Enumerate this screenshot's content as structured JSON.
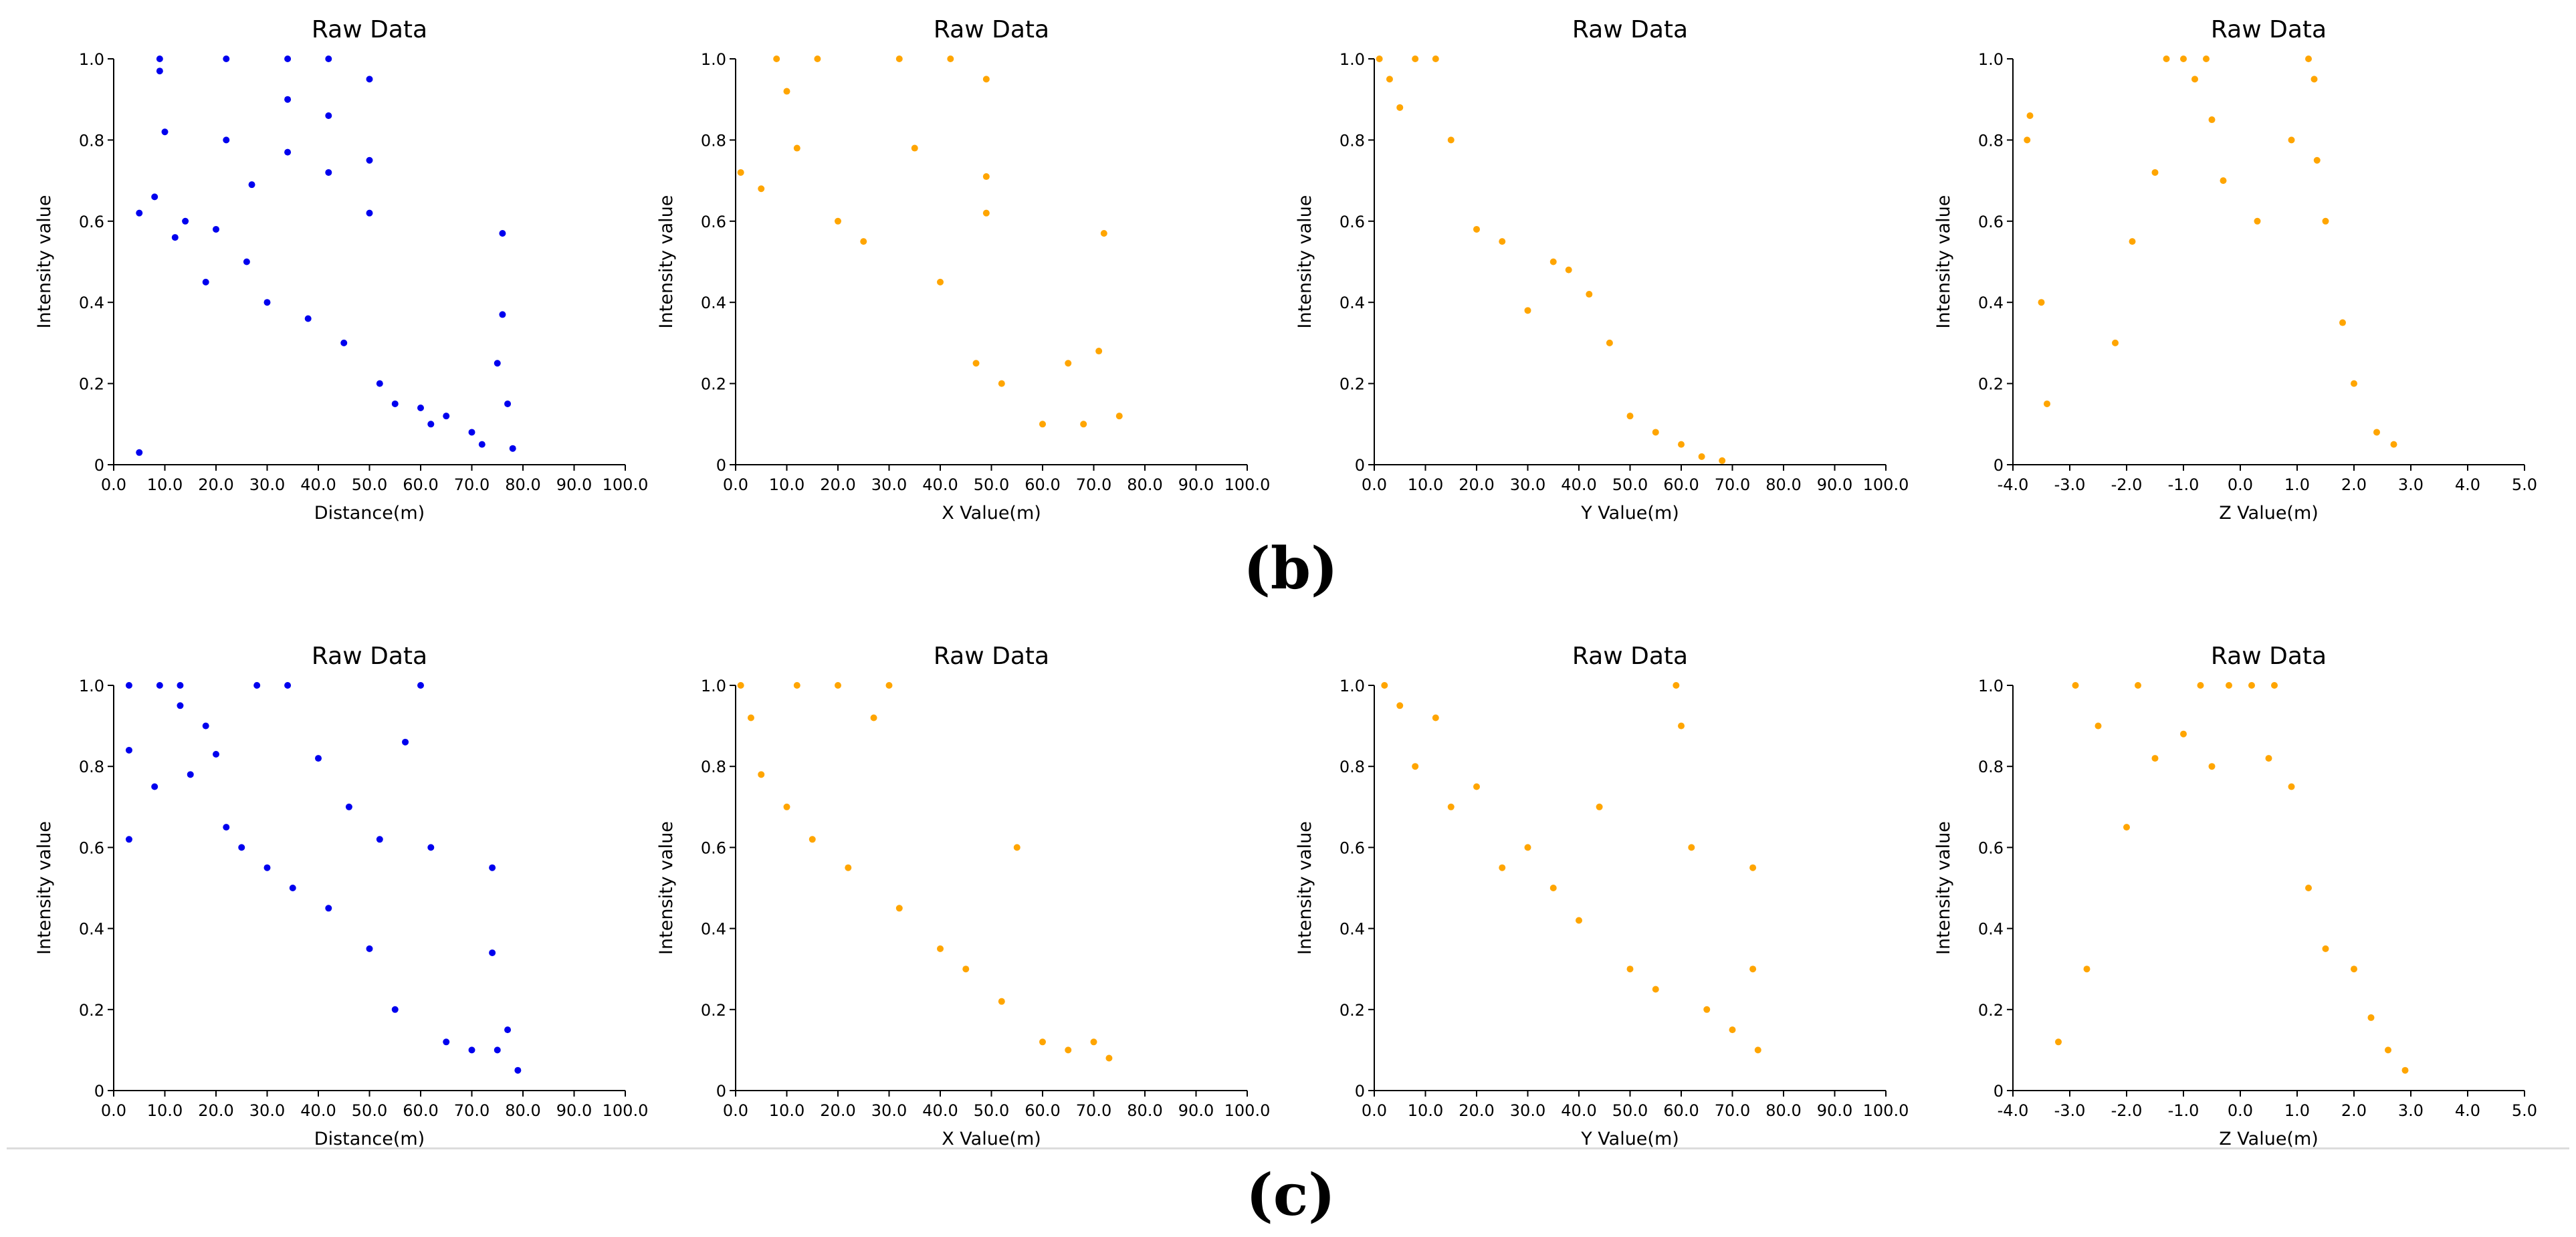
{
  "figure": {
    "row_labels": [
      "(b)",
      "(c)"
    ]
  },
  "chart_data": [
    {
      "id": "b1",
      "type": "scatter",
      "title": "Raw Data",
      "xlabel": "Distance(m)",
      "ylabel": "Intensity value",
      "xlim": [
        0,
        100
      ],
      "ylim": [
        0,
        1.0
      ],
      "xticks": [
        "0.0",
        "10.0",
        "20.0",
        "30.0",
        "40.0",
        "50.0",
        "60.0",
        "70.0",
        "80.0",
        "90.0",
        "100.0"
      ],
      "yticks": [
        "0",
        "0.2",
        "0.4",
        "0.6",
        "0.8",
        "1.0"
      ],
      "color": "#0000ee",
      "series": [
        {
          "name": "Raw Data",
          "points": [
            [
              5,
              0.03
            ],
            [
              5,
              0.62
            ],
            [
              8,
              0.66
            ],
            [
              9,
              0.97
            ],
            [
              9,
              1.0
            ],
            [
              10,
              0.82
            ],
            [
              12,
              0.56
            ],
            [
              14,
              0.6
            ],
            [
              18,
              0.45
            ],
            [
              20,
              0.58
            ],
            [
              22,
              1.0
            ],
            [
              22,
              0.8
            ],
            [
              26,
              0.5
            ],
            [
              27,
              0.69
            ],
            [
              30,
              0.4
            ],
            [
              34,
              1.0
            ],
            [
              34,
              0.9
            ],
            [
              34,
              0.77
            ],
            [
              38,
              0.36
            ],
            [
              42,
              1.0
            ],
            [
              42,
              0.86
            ],
            [
              42,
              0.72
            ],
            [
              45,
              0.3
            ],
            [
              50,
              0.95
            ],
            [
              50,
              0.75
            ],
            [
              50,
              0.62
            ],
            [
              52,
              0.2
            ],
            [
              55,
              0.15
            ],
            [
              60,
              0.14
            ],
            [
              62,
              0.1
            ],
            [
              65,
              0.12
            ],
            [
              70,
              0.08
            ],
            [
              72,
              0.05
            ],
            [
              75,
              0.25
            ],
            [
              76,
              0.57
            ],
            [
              76,
              0.37
            ],
            [
              77,
              0.15
            ],
            [
              78,
              0.04
            ]
          ]
        }
      ]
    },
    {
      "id": "b2",
      "type": "scatter",
      "title": "Raw Data",
      "xlabel": "X Value(m)",
      "ylabel": "Intensity value",
      "xlim": [
        0,
        100
      ],
      "ylim": [
        0,
        1.0
      ],
      "xticks": [
        "0.0",
        "10.0",
        "20.0",
        "30.0",
        "40.0",
        "50.0",
        "60.0",
        "70.0",
        "80.0",
        "90.0",
        "100.0"
      ],
      "yticks": [
        "0",
        "0.2",
        "0.4",
        "0.6",
        "0.8",
        "1.0"
      ],
      "color": "#ffa500",
      "series": [
        {
          "name": "Raw Data",
          "points": [
            [
              1,
              0.72
            ],
            [
              5,
              0.68
            ],
            [
              8,
              1.0
            ],
            [
              10,
              0.92
            ],
            [
              12,
              0.78
            ],
            [
              16,
              1.0
            ],
            [
              20,
              0.6
            ],
            [
              25,
              0.55
            ],
            [
              32,
              1.0
            ],
            [
              35,
              0.78
            ],
            [
              40,
              0.45
            ],
            [
              42,
              1.0
            ],
            [
              47,
              0.25
            ],
            [
              49,
              0.95
            ],
            [
              49,
              0.71
            ],
            [
              49,
              0.62
            ],
            [
              52,
              0.2
            ],
            [
              60,
              0.1
            ],
            [
              65,
              0.25
            ],
            [
              68,
              0.1
            ],
            [
              71,
              0.28
            ],
            [
              72,
              0.57
            ],
            [
              75,
              0.12
            ]
          ]
        }
      ]
    },
    {
      "id": "b3",
      "type": "scatter",
      "title": "Raw Data",
      "xlabel": "Y Value(m)",
      "ylabel": "Intensity value",
      "xlim": [
        0,
        100
      ],
      "ylim": [
        0,
        1.0
      ],
      "xticks": [
        "0.0",
        "10.0",
        "20.0",
        "30.0",
        "40.0",
        "50.0",
        "60.0",
        "70.0",
        "80.0",
        "90.0",
        "100.0"
      ],
      "yticks": [
        "0",
        "0.2",
        "0.4",
        "0.6",
        "0.8",
        "1.0"
      ],
      "color": "#ffa500",
      "series": [
        {
          "name": "Raw Data",
          "points": [
            [
              1,
              1.0
            ],
            [
              3,
              0.95
            ],
            [
              5,
              0.88
            ],
            [
              8,
              1.0
            ],
            [
              12,
              1.0
            ],
            [
              15,
              0.8
            ],
            [
              20,
              0.58
            ],
            [
              25,
              0.55
            ],
            [
              30,
              0.38
            ],
            [
              35,
              0.5
            ],
            [
              38,
              0.48
            ],
            [
              42,
              0.42
            ],
            [
              46,
              0.3
            ],
            [
              50,
              0.12
            ],
            [
              55,
              0.08
            ],
            [
              60,
              0.05
            ],
            [
              64,
              0.02
            ],
            [
              68,
              0.01
            ]
          ]
        }
      ]
    },
    {
      "id": "b4",
      "type": "scatter",
      "title": "Raw Data",
      "xlabel": "Z Value(m)",
      "ylabel": "Intensity value",
      "xlim": [
        -4,
        5
      ],
      "ylim": [
        0,
        1.0
      ],
      "xticks": [
        "-4.0",
        "-3.0",
        "-2.0",
        "-1.0",
        "0.0",
        "1.0",
        "2.0",
        "3.0",
        "4.0",
        "5.0"
      ],
      "yticks": [
        "0",
        "0.2",
        "0.4",
        "0.6",
        "0.8",
        "1.0"
      ],
      "color": "#ffa500",
      "series": [
        {
          "name": "Raw Data",
          "points": [
            [
              -3.7,
              0.86
            ],
            [
              -3.75,
              0.8
            ],
            [
              -3.5,
              0.4
            ],
            [
              -3.4,
              0.15
            ],
            [
              -2.2,
              0.3
            ],
            [
              -1.9,
              0.55
            ],
            [
              -1.5,
              0.72
            ],
            [
              -1.3,
              1.0
            ],
            [
              -1.0,
              1.0
            ],
            [
              -0.8,
              0.95
            ],
            [
              -0.6,
              1.0
            ],
            [
              -0.5,
              0.85
            ],
            [
              -0.3,
              0.7
            ],
            [
              0.3,
              0.6
            ],
            [
              0.9,
              0.8
            ],
            [
              1.2,
              1.0
            ],
            [
              1.3,
              0.95
            ],
            [
              1.35,
              0.75
            ],
            [
              1.5,
              0.6
            ],
            [
              1.8,
              0.35
            ],
            [
              2.0,
              0.2
            ],
            [
              2.4,
              0.08
            ],
            [
              2.7,
              0.05
            ]
          ]
        }
      ]
    },
    {
      "id": "c1",
      "type": "scatter",
      "title": "Raw Data",
      "xlabel": "Distance(m)",
      "ylabel": "Intensity value",
      "xlim": [
        0,
        100
      ],
      "ylim": [
        0,
        1.0
      ],
      "xticks": [
        "0.0",
        "10.0",
        "20.0",
        "30.0",
        "40.0",
        "50.0",
        "60.0",
        "70.0",
        "80.0",
        "90.0",
        "100.0"
      ],
      "yticks": [
        "0",
        "0.2",
        "0.4",
        "0.6",
        "0.8",
        "1.0"
      ],
      "color": "#0000ee",
      "series": [
        {
          "name": "Raw Data",
          "points": [
            [
              3,
              1.0
            ],
            [
              3,
              0.84
            ],
            [
              3,
              0.62
            ],
            [
              8,
              0.75
            ],
            [
              9,
              1.0
            ],
            [
              13,
              1.0
            ],
            [
              13,
              0.95
            ],
            [
              15,
              0.78
            ],
            [
              18,
              0.9
            ],
            [
              20,
              0.83
            ],
            [
              22,
              0.65
            ],
            [
              25,
              0.6
            ],
            [
              28,
              1.0
            ],
            [
              30,
              0.55
            ],
            [
              34,
              1.0
            ],
            [
              35,
              0.5
            ],
            [
              40,
              0.82
            ],
            [
              42,
              0.45
            ],
            [
              46,
              0.7
            ],
            [
              50,
              0.35
            ],
            [
              52,
              0.62
            ],
            [
              55,
              0.2
            ],
            [
              57,
              0.86
            ],
            [
              60,
              1.0
            ],
            [
              62,
              0.6
            ],
            [
              65,
              0.12
            ],
            [
              70,
              0.1
            ],
            [
              74,
              0.55
            ],
            [
              74,
              0.34
            ],
            [
              75,
              0.1
            ],
            [
              77,
              0.15
            ],
            [
              79,
              0.05
            ]
          ]
        }
      ]
    },
    {
      "id": "c2",
      "type": "scatter",
      "title": "Raw Data",
      "xlabel": "X Value(m)",
      "ylabel": "Intensity value",
      "xlim": [
        0,
        100
      ],
      "ylim": [
        0,
        1.0
      ],
      "xticks": [
        "0.0",
        "10.0",
        "20.0",
        "30.0",
        "40.0",
        "50.0",
        "60.0",
        "70.0",
        "80.0",
        "90.0",
        "100.0"
      ],
      "yticks": [
        "0",
        "0.2",
        "0.4",
        "0.6",
        "0.8",
        "1.0"
      ],
      "color": "#ffa500",
      "series": [
        {
          "name": "Raw Data",
          "points": [
            [
              1,
              1.0
            ],
            [
              3,
              0.92
            ],
            [
              5,
              0.78
            ],
            [
              10,
              0.7
            ],
            [
              12,
              1.0
            ],
            [
              15,
              0.62
            ],
            [
              20,
              1.0
            ],
            [
              22,
              0.55
            ],
            [
              27,
              0.92
            ],
            [
              30,
              1.0
            ],
            [
              32,
              0.45
            ],
            [
              40,
              0.35
            ],
            [
              45,
              0.3
            ],
            [
              52,
              0.22
            ],
            [
              55,
              0.6
            ],
            [
              60,
              0.12
            ],
            [
              65,
              0.1
            ],
            [
              70,
              0.12
            ],
            [
              73,
              0.08
            ]
          ]
        }
      ]
    },
    {
      "id": "c3",
      "type": "scatter",
      "title": "Raw Data",
      "xlabel": "Y Value(m)",
      "ylabel": "Intensity value",
      "xlim": [
        0,
        100
      ],
      "ylim": [
        0,
        1.0
      ],
      "xticks": [
        "0.0",
        "10.0",
        "20.0",
        "30.0",
        "40.0",
        "50.0",
        "60.0",
        "70.0",
        "80.0",
        "90.0",
        "100.0"
      ],
      "yticks": [
        "0",
        "0.2",
        "0.4",
        "0.6",
        "0.8",
        "1.0"
      ],
      "color": "#ffa500",
      "series": [
        {
          "name": "Raw Data",
          "points": [
            [
              2,
              1.0
            ],
            [
              5,
              0.95
            ],
            [
              8,
              0.8
            ],
            [
              12,
              0.92
            ],
            [
              15,
              0.7
            ],
            [
              20,
              0.75
            ],
            [
              25,
              0.55
            ],
            [
              30,
              0.6
            ],
            [
              35,
              0.5
            ],
            [
              40,
              0.42
            ],
            [
              44,
              0.7
            ],
            [
              50,
              0.3
            ],
            [
              55,
              0.25
            ],
            [
              59,
              1.0
            ],
            [
              60,
              0.9
            ],
            [
              62,
              0.6
            ],
            [
              65,
              0.2
            ],
            [
              70,
              0.15
            ],
            [
              74,
              0.55
            ],
            [
              74,
              0.3
            ],
            [
              75,
              0.1
            ]
          ]
        }
      ]
    },
    {
      "id": "c4",
      "type": "scatter",
      "title": "Raw Data",
      "xlabel": "Z Value(m)",
      "ylabel": "Intensity value",
      "xlim": [
        -4,
        5
      ],
      "ylim": [
        0,
        1.0
      ],
      "xticks": [
        "-4.0",
        "-3.0",
        "-2.0",
        "-1.0",
        "0.0",
        "1.0",
        "2.0",
        "3.0",
        "4.0",
        "5.0"
      ],
      "yticks": [
        "0",
        "0.2",
        "0.4",
        "0.6",
        "0.8",
        "1.0"
      ],
      "color": "#ffa500",
      "series": [
        {
          "name": "Raw Data",
          "points": [
            [
              -3.2,
              0.12
            ],
            [
              -2.9,
              1.0
            ],
            [
              -2.7,
              0.3
            ],
            [
              -2.5,
              0.9
            ],
            [
              -2.0,
              0.65
            ],
            [
              -1.8,
              1.0
            ],
            [
              -1.5,
              0.82
            ],
            [
              -1.0,
              0.88
            ],
            [
              -0.7,
              1.0
            ],
            [
              -0.5,
              0.8
            ],
            [
              -0.2,
              1.0
            ],
            [
              0.2,
              1.0
            ],
            [
              0.5,
              0.82
            ],
            [
              0.6,
              1.0
            ],
            [
              0.9,
              0.75
            ],
            [
              1.2,
              0.5
            ],
            [
              1.5,
              0.35
            ],
            [
              2.0,
              0.3
            ],
            [
              2.3,
              0.18
            ],
            [
              2.6,
              0.1
            ],
            [
              2.9,
              0.05
            ]
          ]
        }
      ]
    }
  ]
}
